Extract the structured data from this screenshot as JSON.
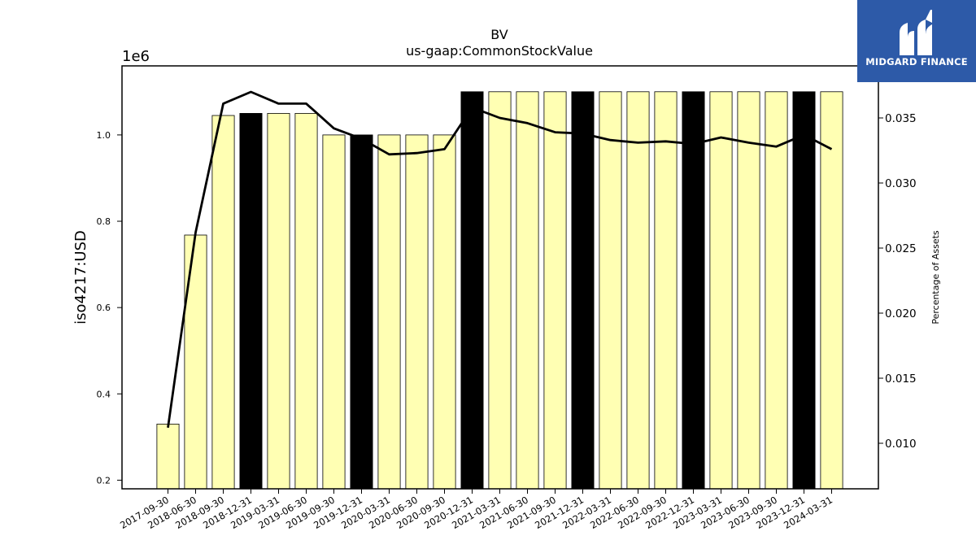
{
  "chart_data": {
    "type": "bar",
    "title": "BV",
    "subtitle": "us-gaap:CommonStockValue",
    "ylabel": "iso4217:USD",
    "y_offset_label": "1e6",
    "y2label": "Percentage of Assets",
    "ylim": [
      180000,
      1160000
    ],
    "y2lim": [
      0.0065,
      0.039
    ],
    "yticks": [
      "0.2",
      "0.4",
      "0.6",
      "0.8",
      "1.0"
    ],
    "y2ticks": [
      "0.010",
      "0.015",
      "0.020",
      "0.025",
      "0.030",
      "0.035"
    ],
    "categories": [
      "2017-09-30",
      "2018-06-30",
      "2018-09-30",
      "2018-12-31",
      "2019-03-31",
      "2019-06-30",
      "2019-09-30",
      "2019-12-31",
      "2020-03-31",
      "2020-06-30",
      "2020-09-30",
      "2020-12-31",
      "2021-03-31",
      "2021-06-30",
      "2021-09-30",
      "2021-12-31",
      "2022-03-31",
      "2022-06-30",
      "2022-09-30",
      "2022-12-31",
      "2023-03-31",
      "2023-06-30",
      "2023-09-30",
      "2023-12-31",
      "2024-03-31"
    ],
    "series": [
      {
        "type": "bar",
        "values": [
          330000,
          768000,
          1045000,
          1050000,
          1050000,
          1050000,
          1000000,
          1000000,
          1000000,
          1000000,
          1000000,
          1100000,
          1100000,
          1100000,
          1100000,
          1100000,
          1100000,
          1100000,
          1100000,
          1100000,
          1100000,
          1100000,
          1100000,
          1100000,
          1100000
        ],
        "highlight": [
          false,
          false,
          false,
          true,
          false,
          false,
          false,
          true,
          false,
          false,
          false,
          true,
          false,
          false,
          false,
          true,
          false,
          false,
          false,
          true,
          false,
          false,
          false,
          true,
          false
        ],
        "color": "#ffffb3",
        "highlight_color": "#000000"
      },
      {
        "type": "line",
        "axis": "right",
        "values": [
          0.0112,
          0.0262,
          0.0361,
          0.037,
          0.0361,
          0.0361,
          0.0342,
          0.0334,
          0.0322,
          0.0323,
          0.0326,
          0.0358,
          0.035,
          0.0346,
          0.0339,
          0.0338,
          0.0333,
          0.0331,
          0.0332,
          0.033,
          0.0335,
          0.0331,
          0.0328,
          0.0337,
          0.0326
        ],
        "color": "#000000"
      }
    ],
    "grid": false
  },
  "logo": {
    "text": "MIDGARD FINANCE",
    "background": "#2d5aa8"
  }
}
